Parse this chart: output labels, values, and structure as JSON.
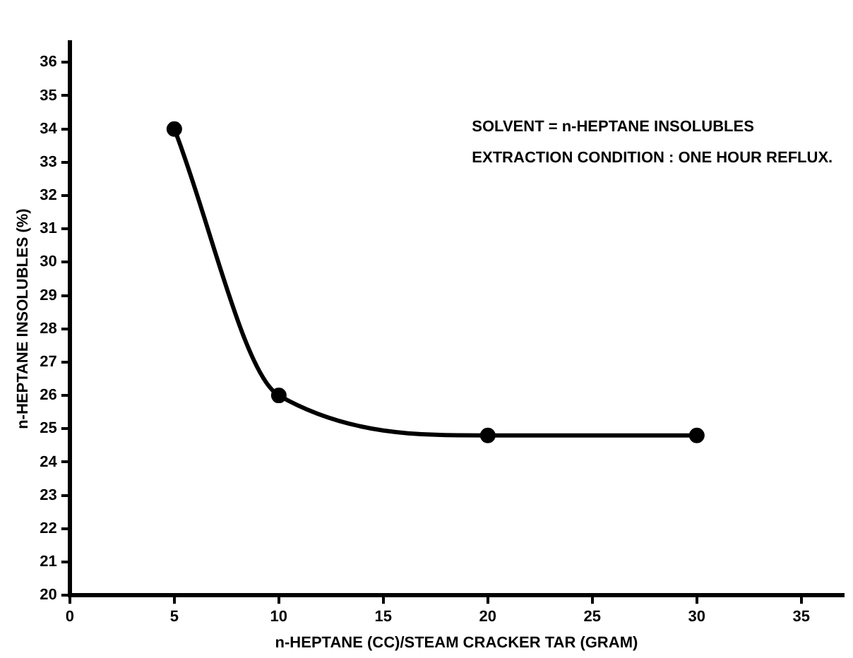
{
  "chart_data": {
    "type": "line",
    "xlabel": "n-HEPTANE (CC)/STEAM CRACKER TAR (GRAM)",
    "ylabel": "n-HEPTANE INSOLUBLES (%)",
    "x": [
      5,
      10,
      20,
      30
    ],
    "series": [
      {
        "color": "#000000",
        "values": [
          34,
          26,
          24.8,
          24.8
        ]
      }
    ],
    "xlim": [
      0,
      37
    ],
    "xticks": [
      0,
      5,
      10,
      15,
      20,
      25,
      30,
      35
    ],
    "ylim": [
      20,
      36.6
    ],
    "yticks": [
      20,
      21,
      22,
      23,
      24,
      25,
      26,
      27,
      28,
      29,
      30,
      31,
      32,
      33,
      34,
      35,
      36
    ],
    "marker": "circle",
    "line_style": "solid",
    "grid": false,
    "legend": false,
    "annotations": [
      "SOLVENT = n-HEPTANE INSOLUBLES",
      "EXTRACTION CONDITION : ONE HOUR REFLUX."
    ]
  }
}
